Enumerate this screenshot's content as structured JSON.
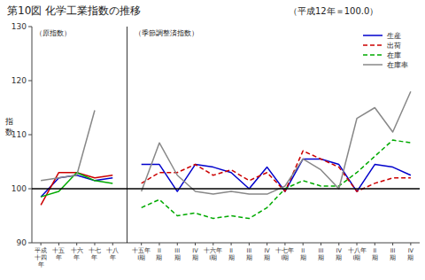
{
  "chart_data": {
    "type": "line",
    "title": "第10図  化学工業指数の推移",
    "subtitle": "（平成12年＝100.0）",
    "y_label": "指数",
    "annotations": [
      "（原指数）",
      "（季節調整済指数）"
    ],
    "baseline": 100,
    "ylim": [
      90,
      130
    ],
    "yticks": [
      90,
      100,
      110,
      120,
      130
    ],
    "grid": false,
    "legend": "upper right",
    "categories": [
      "平成\n十四\n年",
      "十五\n年",
      "十六\n年",
      "十七\n年",
      "十八\n年",
      "十五年\nI期",
      "II\n期",
      "III\n期",
      "IV\n期",
      "十六年\nI期",
      "II\n期",
      "III\n期",
      "IV\n期",
      "十七年\nI期",
      "II\n期",
      "III\n期",
      "IV\n期",
      "十八年\nI期",
      "II\n期",
      "III\n期",
      "IV\n期"
    ],
    "series": [
      {
        "color": "#0000cc",
        "line_style": "solid",
        "values": [
          98.5,
          102.0,
          102.5,
          101.5,
          102.0,
          null,
          null,
          null,
          null,
          null,
          null,
          null,
          null,
          null,
          null,
          null,
          null,
          null,
          null,
          null,
          null
        ]
      },
      {
        "color": "#cc0000",
        "line_style": "solid",
        "values": [
          97.0,
          103.0,
          103.0,
          102.0,
          102.5,
          null,
          null,
          null,
          null,
          null,
          null,
          null,
          null,
          null,
          null,
          null,
          null,
          null,
          null,
          null,
          null
        ]
      },
      {
        "color": "#00aa00",
        "line_style": "solid",
        "values": [
          98.5,
          99.5,
          103.0,
          101.5,
          101.0,
          null,
          null,
          null,
          null,
          null,
          null,
          null,
          null,
          null,
          null,
          null,
          null,
          null,
          null,
          null,
          null
        ]
      },
      {
        "color": "#888888",
        "line_style": "solid",
        "values": [
          101.5,
          102.0,
          102.5,
          114.5,
          null,
          null,
          null,
          null,
          null,
          null,
          null,
          null,
          null,
          null,
          null,
          null,
          null,
          null,
          null,
          null,
          null
        ]
      },
      {
        "name": "生産",
        "color": "#0000cc",
        "line_style": "solid",
        "values": [
          null,
          null,
          null,
          null,
          null,
          104.5,
          104.5,
          99.5,
          104.5,
          104.0,
          103.0,
          100.0,
          104.0,
          99.5,
          105.5,
          105.5,
          104.5,
          99.5,
          104.5,
          104.0,
          102.5
        ]
      },
      {
        "name": "出荷",
        "color": "#cc0000",
        "line_style": "dashed",
        "values": [
          null,
          null,
          null,
          null,
          null,
          101.0,
          103.0,
          103.0,
          104.5,
          102.5,
          103.5,
          101.5,
          103.0,
          99.5,
          107.0,
          105.5,
          104.0,
          99.5,
          101.0,
          102.0,
          102.0
        ]
      },
      {
        "name": "在庫",
        "color": "#00aa00",
        "line_style": "dashed",
        "values": [
          null,
          null,
          null,
          null,
          null,
          96.5,
          98.0,
          95.0,
          95.5,
          94.5,
          95.0,
          94.5,
          96.5,
          100.0,
          101.5,
          100.5,
          100.5,
          103.0,
          106.0,
          109.0,
          108.5
        ]
      },
      {
        "name": "在庫率",
        "color": "#888888",
        "line_style": "solid",
        "values": [
          null,
          null,
          null,
          null,
          null,
          99.5,
          108.5,
          102.5,
          99.5,
          99.0,
          99.5,
          99.0,
          99.0,
          100.5,
          105.5,
          103.5,
          100.0,
          113.0,
          115.0,
          110.5,
          118.0
        ]
      }
    ]
  }
}
